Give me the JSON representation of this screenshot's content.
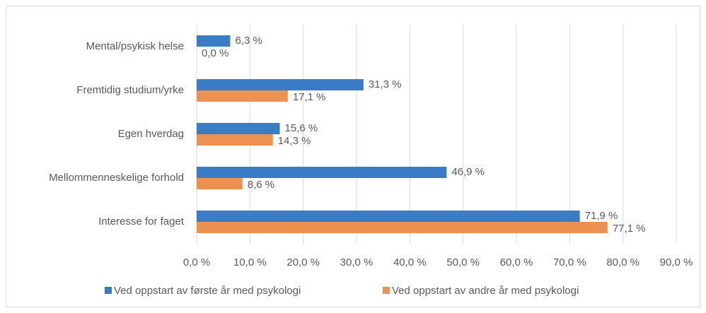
{
  "chart_data": {
    "type": "hbar",
    "categories": [
      "Mental/psykisk helse",
      "Fremtidig studium/yrke",
      "Egen hverdag",
      "Mellommenneskelige forhold",
      "Interesse for faget"
    ],
    "series": [
      {
        "name": "Ved oppstart av første år med psykologi",
        "color": "#3a7dc6",
        "values": [
          6.3,
          31.3,
          15.6,
          46.9,
          71.9
        ],
        "value_labels": [
          "6,3 %",
          "31,3 %",
          "15,6 %",
          "46,9 %",
          "71,9 %"
        ]
      },
      {
        "name": "Ved oppstart av andre år med psykologi",
        "color": "#ec9150",
        "values": [
          0.0,
          17.1,
          14.3,
          8.6,
          77.1
        ],
        "value_labels": [
          "0,0 %",
          "17,1 %",
          "14,3 %",
          "8,6 %",
          "77,1 %"
        ]
      }
    ],
    "xlim": [
      0,
      90
    ],
    "xticks": [
      {
        "value": 0,
        "label": "0,0 %"
      },
      {
        "value": 10,
        "label": "10,0 %"
      },
      {
        "value": 20,
        "label": "20,0 %"
      },
      {
        "value": 30,
        "label": "30,0 %"
      },
      {
        "value": 40,
        "label": "40,0 %"
      },
      {
        "value": 50,
        "label": "50,0 %"
      },
      {
        "value": 60,
        "label": "60,0 %"
      },
      {
        "value": 70,
        "label": "70,0 %"
      },
      {
        "value": 80,
        "label": "80,0 %"
      },
      {
        "value": 90,
        "label": "90,0 %"
      }
    ],
    "grid": true,
    "legend": "bottom"
  }
}
